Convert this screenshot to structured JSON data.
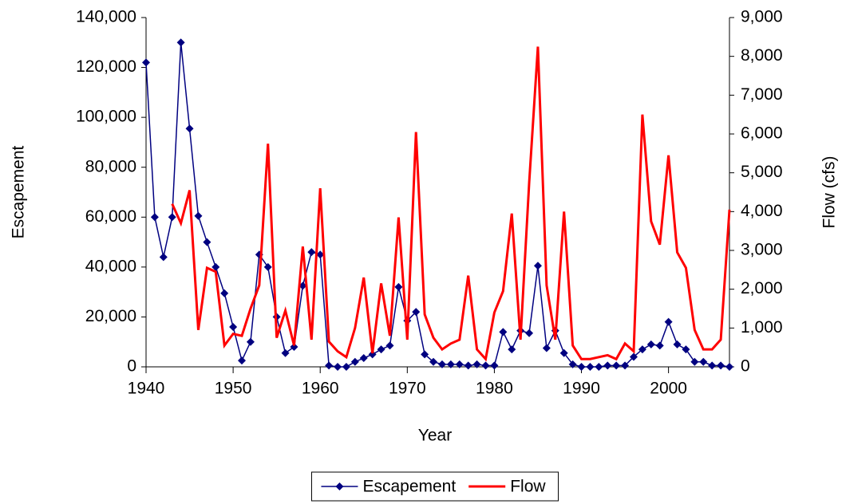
{
  "chart_data": {
    "type": "line",
    "x_label": "Year",
    "y_label": "Escapement",
    "y2_label": "Flow (cfs)",
    "x": [
      1940,
      1941,
      1942,
      1943,
      1944,
      1945,
      1946,
      1947,
      1948,
      1949,
      1950,
      1951,
      1952,
      1953,
      1954,
      1955,
      1956,
      1957,
      1958,
      1959,
      1960,
      1961,
      1962,
      1963,
      1964,
      1965,
      1966,
      1967,
      1968,
      1969,
      1970,
      1971,
      1972,
      1973,
      1974,
      1975,
      1976,
      1977,
      1978,
      1979,
      1980,
      1981,
      1982,
      1983,
      1984,
      1985,
      1986,
      1987,
      1988,
      1989,
      1990,
      1991,
      1992,
      1993,
      1994,
      1995,
      1996,
      1997,
      1998,
      1999,
      2000,
      2001,
      2002,
      2003,
      2004,
      2005,
      2006,
      2007
    ],
    "series": [
      {
        "name": "Escapement",
        "color": "#000080",
        "marker": "diamond",
        "values": [
          122000,
          60000,
          44000,
          60000,
          130000,
          95500,
          60500,
          50000,
          40000,
          29500,
          16000,
          2500,
          10000,
          45000,
          40000,
          20000,
          5500,
          8000,
          32500,
          46000,
          45000,
          500,
          0,
          0,
          2000,
          3500,
          5000,
          7000,
          8500,
          32000,
          18500,
          22000,
          5000,
          2000,
          1000,
          1000,
          1000,
          500,
          1000,
          500,
          500,
          14000,
          7000,
          14500,
          13500,
          40500,
          7500,
          14500,
          5500,
          1000,
          0,
          0,
          0,
          500,
          500,
          500,
          4000,
          7000,
          9000,
          8500,
          18000,
          9000,
          7000,
          2000,
          2000,
          500,
          500,
          0
        ]
      },
      {
        "name": "Flow",
        "color": "#ff0000",
        "axis": "y2",
        "values": [
          null,
          null,
          null,
          4200,
          3700,
          4550,
          950,
          2550,
          2450,
          550,
          850,
          800,
          1500,
          2100,
          5750,
          750,
          1450,
          550,
          3100,
          700,
          4600,
          650,
          400,
          250,
          1000,
          2300,
          350,
          2150,
          800,
          3850,
          700,
          6050,
          1350,
          750,
          450,
          600,
          700,
          2350,
          450,
          200,
          1400,
          1950,
          3950,
          700,
          4750,
          8250,
          2100,
          700,
          4000,
          550,
          200,
          200,
          250,
          300,
          200,
          600,
          400,
          6500,
          3750,
          3150,
          5450,
          2950,
          2550,
          950,
          450,
          450,
          700,
          4050
        ]
      }
    ],
    "xlim": [
      1940,
      2007
    ],
    "xticks": [
      1940,
      1950,
      1960,
      1970,
      1980,
      1990,
      2000
    ],
    "ylim": [
      0,
      140000
    ],
    "yticks": [
      0,
      {
        "value": 20000,
        "label": "20,000"
      },
      {
        "value": 40000,
        "label": "40,000"
      },
      {
        "value": 60000,
        "label": "60,000"
      },
      {
        "value": 80000,
        "label": "80,000"
      },
      {
        "value": 100000,
        "label": "100,000"
      },
      {
        "value": 120000,
        "label": "120,000"
      },
      {
        "value": 140000,
        "label": "140,000"
      }
    ],
    "y2lim": [
      0,
      9000
    ],
    "y2ticks": [
      0,
      {
        "value": 1000,
        "label": "1,000"
      },
      {
        "value": 2000,
        "label": "2,000"
      },
      {
        "value": 3000,
        "label": "3,000"
      },
      {
        "value": 4000,
        "label": "4,000"
      },
      {
        "value": 5000,
        "label": "5,000"
      },
      {
        "value": 6000,
        "label": "6,000"
      },
      {
        "value": 7000,
        "label": "7,000"
      },
      {
        "value": 8000,
        "label": "8,000"
      },
      {
        "value": 9000,
        "label": "9,000"
      }
    ],
    "legend": "bottom"
  }
}
